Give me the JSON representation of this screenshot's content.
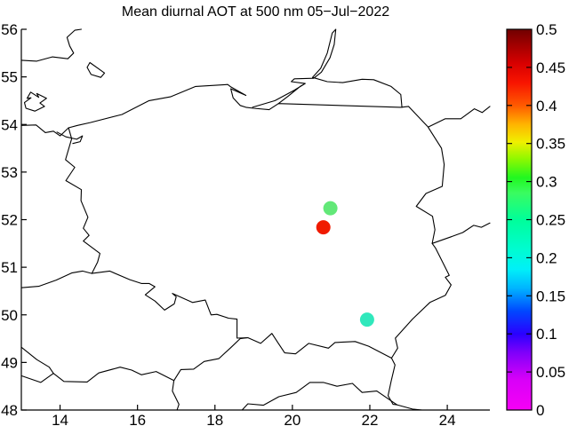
{
  "chart_data": {
    "type": "scatter",
    "title": "Mean diurnal AOT at 500 nm 05−Jul−2022",
    "xlabel": "",
    "ylabel": "",
    "xlim": [
      13,
      25.1
    ],
    "ylim": [
      48,
      56
    ],
    "grid": false,
    "x_ticks": [
      14,
      16,
      18,
      20,
      22,
      24
    ],
    "y_ticks": [
      48,
      49,
      50,
      51,
      52,
      53,
      54,
      55,
      56
    ],
    "points": [
      {
        "lon": 20.98,
        "lat": 52.24,
        "color": "#62e878",
        "value_est": 0.28,
        "radius": 8
      },
      {
        "lon": 20.8,
        "lat": 51.84,
        "color": "#f01b00",
        "value_est": 0.42,
        "radius": 8
      },
      {
        "lon": 21.93,
        "lat": 49.9,
        "color": "#30e8bc",
        "value_est": 0.22,
        "radius": 8
      }
    ],
    "colorbar": {
      "min": 0,
      "max": 0.5,
      "position": "right",
      "tick_values": [
        0,
        0.05,
        0.1,
        0.15,
        0.2,
        0.25,
        0.3,
        0.35,
        0.4,
        0.45,
        0.5
      ],
      "tick_labels": [
        "0",
        "0.05",
        "0.1",
        "0.15",
        "0.2",
        "0.25",
        "0.3",
        "0.35",
        "0.4",
        "0.45",
        "0.5"
      ],
      "gradient_stops": [
        {
          "v": 0.0,
          "c": "#f600f6"
        },
        {
          "v": 0.04,
          "c": "#d800f8"
        },
        {
          "v": 0.075,
          "c": "#8000fa"
        },
        {
          "v": 0.1,
          "c": "#2a00ff"
        },
        {
          "v": 0.13,
          "c": "#0048ff"
        },
        {
          "v": 0.16,
          "c": "#00b4ff"
        },
        {
          "v": 0.185,
          "c": "#00f0f8"
        },
        {
          "v": 0.21,
          "c": "#00fcd2"
        },
        {
          "v": 0.25,
          "c": "#00fe9a"
        },
        {
          "v": 0.285,
          "c": "#3afc60"
        },
        {
          "v": 0.305,
          "c": "#20f820"
        },
        {
          "v": 0.33,
          "c": "#90f800"
        },
        {
          "v": 0.352,
          "c": "#f0f000"
        },
        {
          "v": 0.375,
          "c": "#ffb400"
        },
        {
          "v": 0.4,
          "c": "#ff5a00"
        },
        {
          "v": 0.43,
          "c": "#f81400"
        },
        {
          "v": 0.455,
          "c": "#d80000"
        },
        {
          "v": 0.48,
          "c": "#a00000"
        },
        {
          "v": 0.5,
          "c": "#700000"
        }
      ]
    },
    "map_outlines": {
      "poland": [
        [
          14.22,
          53.93
        ],
        [
          14.3,
          53.7
        ],
        [
          14.14,
          53.26
        ],
        [
          14.38,
          53.1
        ],
        [
          14.15,
          52.82
        ],
        [
          14.55,
          52.63
        ],
        [
          14.54,
          52.4
        ],
        [
          14.72,
          52.05
        ],
        [
          14.6,
          51.82
        ],
        [
          14.75,
          51.67
        ],
        [
          14.6,
          51.55
        ],
        [
          15.03,
          51.29
        ],
        [
          14.97,
          51.11
        ],
        [
          14.82,
          50.87
        ],
        [
          15.28,
          50.92
        ],
        [
          15.8,
          50.74
        ],
        [
          16.1,
          50.66
        ],
        [
          16.3,
          50.66
        ],
        [
          16.45,
          50.59
        ],
        [
          16.2,
          50.42
        ],
        [
          16.45,
          50.29
        ],
        [
          16.7,
          50.1
        ],
        [
          16.95,
          50.23
        ],
        [
          17.0,
          50.38
        ],
        [
          16.9,
          50.45
        ],
        [
          17.42,
          50.26
        ],
        [
          17.75,
          50.31
        ],
        [
          17.9,
          50.0
        ],
        [
          18.05,
          50.01
        ],
        [
          18.35,
          49.93
        ],
        [
          18.57,
          49.91
        ],
        [
          18.57,
          49.51
        ],
        [
          18.85,
          49.52
        ],
        [
          19.18,
          49.4
        ],
        [
          19.47,
          49.61
        ],
        [
          19.63,
          49.41
        ],
        [
          19.8,
          49.2
        ],
        [
          20.08,
          49.18
        ],
        [
          20.42,
          49.4
        ],
        [
          20.93,
          49.3
        ],
        [
          21.1,
          49.42
        ],
        [
          21.62,
          49.44
        ],
        [
          21.97,
          49.34
        ],
        [
          22.56,
          49.09
        ],
        [
          22.72,
          49.3
        ],
        [
          22.66,
          49.51
        ],
        [
          23.1,
          49.91
        ],
        [
          23.55,
          50.26
        ],
        [
          23.95,
          50.41
        ],
        [
          24.1,
          50.63
        ],
        [
          23.95,
          50.79
        ],
        [
          24.05,
          50.83
        ],
        [
          23.7,
          51.4
        ],
        [
          23.61,
          51.5
        ],
        [
          23.68,
          51.79
        ],
        [
          23.62,
          52.07
        ],
        [
          23.2,
          52.28
        ],
        [
          23.45,
          52.55
        ],
        [
          23.87,
          52.7
        ],
        [
          23.92,
          53.16
        ],
        [
          23.85,
          53.5
        ],
        [
          23.5,
          53.95
        ],
        [
          23.0,
          54.38
        ],
        [
          22.8,
          54.36
        ],
        [
          19.64,
          54.44
        ],
        [
          19.4,
          54.31
        ],
        [
          19.0,
          54.34
        ],
        [
          18.8,
          54.36
        ],
        [
          18.65,
          54.4
        ],
        [
          18.47,
          54.56
        ],
        [
          18.41,
          54.75
        ],
        [
          18.8,
          54.61
        ],
        [
          18.41,
          54.79
        ],
        [
          18.33,
          54.84
        ],
        [
          17.5,
          54.8
        ],
        [
          16.85,
          54.58
        ],
        [
          16.3,
          54.5
        ],
        [
          15.6,
          54.21
        ],
        [
          14.78,
          54.04
        ],
        [
          14.45,
          53.98
        ],
        [
          14.22,
          53.93
        ]
      ],
      "german_coast": [
        [
          13.0,
          53.98
        ],
        [
          13.38,
          53.99
        ],
        [
          13.62,
          53.83
        ],
        [
          13.83,
          53.86
        ],
        [
          14.0,
          53.76
        ],
        [
          14.22,
          53.93
        ]
      ],
      "szczecin_lagoon": [
        [
          13.92,
          53.84
        ],
        [
          14.15,
          53.74
        ],
        [
          14.43,
          53.69
        ],
        [
          14.58,
          53.76
        ],
        [
          14.52,
          53.64
        ],
        [
          14.33,
          53.6
        ]
      ],
      "ruegen_island": [
        [
          13.12,
          54.34
        ],
        [
          13.08,
          54.46
        ],
        [
          13.25,
          54.56
        ],
        [
          13.15,
          54.55
        ],
        [
          13.24,
          54.68
        ],
        [
          13.45,
          54.57
        ],
        [
          13.4,
          54.65
        ],
        [
          13.65,
          54.55
        ],
        [
          13.48,
          54.45
        ],
        [
          13.6,
          54.38
        ],
        [
          13.35,
          54.28
        ],
        [
          13.12,
          54.34
        ]
      ],
      "sweden_coast": [
        [
          13.0,
          55.35
        ],
        [
          13.4,
          55.33
        ],
        [
          13.8,
          55.42
        ],
        [
          14.2,
          55.38
        ],
        [
          14.35,
          55.5
        ],
        [
          14.25,
          55.65
        ],
        [
          14.18,
          55.83
        ],
        [
          14.38,
          55.98
        ],
        [
          14.55,
          56.0
        ]
      ],
      "bornholm_island": [
        [
          14.77,
          55.3
        ],
        [
          15.03,
          55.15
        ],
        [
          15.15,
          55.08
        ],
        [
          15.05,
          54.99
        ],
        [
          14.8,
          55.05
        ],
        [
          14.7,
          55.2
        ],
        [
          14.77,
          55.3
        ]
      ],
      "vistula_spit_lagoon": [
        [
          18.97,
          54.36
        ],
        [
          19.55,
          54.5
        ],
        [
          20.05,
          54.72
        ],
        [
          20.33,
          54.86
        ],
        [
          20.2,
          54.8
        ],
        [
          19.9,
          54.6
        ],
        [
          19.64,
          54.44
        ]
      ],
      "sambia_curonian_coast": [
        [
          20.33,
          54.86
        ],
        [
          19.97,
          54.9
        ],
        [
          20.05,
          54.96
        ],
        [
          20.55,
          54.97
        ],
        [
          20.75,
          55.1
        ],
        [
          20.97,
          55.4
        ],
        [
          21.08,
          55.68
        ],
        [
          21.12,
          56.0
        ],
        [
          21.03,
          55.92
        ],
        [
          20.9,
          55.5
        ],
        [
          20.73,
          55.18
        ],
        [
          20.52,
          54.99
        ],
        [
          20.9,
          54.9
        ],
        [
          21.3,
          54.88
        ],
        [
          21.8,
          54.95
        ],
        [
          22.1,
          54.94
        ],
        [
          22.55,
          54.8
        ],
        [
          22.8,
          54.63
        ],
        [
          22.83,
          54.36
        ]
      ],
      "lithuania_belarus_border": [
        [
          23.52,
          53.95
        ],
        [
          23.95,
          54.12
        ],
        [
          24.35,
          54.12
        ],
        [
          24.7,
          54.33
        ],
        [
          24.9,
          54.25
        ],
        [
          25.1,
          54.38
        ]
      ],
      "belarus_ukraine_border": [
        [
          23.61,
          51.5
        ],
        [
          24.1,
          51.64
        ],
        [
          24.4,
          51.73
        ],
        [
          24.68,
          51.88
        ],
        [
          24.88,
          51.84
        ],
        [
          25.1,
          51.93
        ]
      ],
      "czech_german_border_north": [
        [
          14.82,
          50.87
        ],
        [
          14.58,
          50.92
        ],
        [
          14.3,
          50.88
        ],
        [
          13.9,
          50.73
        ],
        [
          13.45,
          50.6
        ],
        [
          13.0,
          50.57
        ]
      ],
      "czech_german_border_south": [
        [
          13.0,
          49.32
        ],
        [
          13.4,
          49.06
        ],
        [
          13.72,
          48.9
        ],
        [
          13.83,
          48.77
        ]
      ],
      "german_austrian_border": [
        [
          13.83,
          48.77
        ],
        [
          13.5,
          48.58
        ],
        [
          13.0,
          48.72
        ]
      ],
      "czech_austrian_border": [
        [
          13.83,
          48.77
        ],
        [
          14.1,
          48.6
        ],
        [
          14.7,
          48.59
        ],
        [
          15.0,
          48.78
        ],
        [
          15.55,
          48.9
        ],
        [
          15.85,
          48.84
        ],
        [
          16.1,
          48.74
        ],
        [
          16.48,
          48.81
        ],
        [
          16.94,
          48.62
        ]
      ],
      "czech_slovak_border": [
        [
          16.94,
          48.62
        ],
        [
          17.12,
          48.85
        ],
        [
          17.45,
          48.86
        ],
        [
          17.72,
          49.02
        ],
        [
          18.1,
          49.08
        ],
        [
          18.42,
          49.32
        ],
        [
          18.65,
          49.5
        ],
        [
          18.85,
          49.52
        ]
      ],
      "slovak_austrian_border": [
        [
          16.94,
          48.62
        ],
        [
          16.9,
          48.4
        ],
        [
          17.07,
          48.12
        ],
        [
          17.02,
          48.0
        ]
      ],
      "slovak_hungarian_border": [
        [
          18.7,
          48.0
        ],
        [
          18.85,
          48.13
        ],
        [
          19.25,
          48.1
        ],
        [
          19.65,
          48.28
        ],
        [
          20.1,
          48.37
        ],
        [
          20.45,
          48.58
        ],
        [
          20.8,
          48.58
        ],
        [
          21.15,
          48.5
        ],
        [
          21.55,
          48.56
        ],
        [
          21.8,
          48.37
        ],
        [
          22.18,
          48.4
        ],
        [
          22.5,
          48.22
        ],
        [
          22.7,
          48.11
        ],
        [
          23.1,
          48.02
        ],
        [
          23.35,
          48.0
        ]
      ],
      "slovak_ukrainian_border": [
        [
          22.56,
          49.09
        ],
        [
          22.65,
          48.95
        ],
        [
          22.55,
          48.6
        ],
        [
          22.47,
          48.3
        ],
        [
          22.6,
          48.12
        ],
        [
          22.7,
          48.11
        ]
      ]
    },
    "legend": null
  },
  "layout": {
    "background": "#ffffff",
    "line_color": "#000000"
  }
}
